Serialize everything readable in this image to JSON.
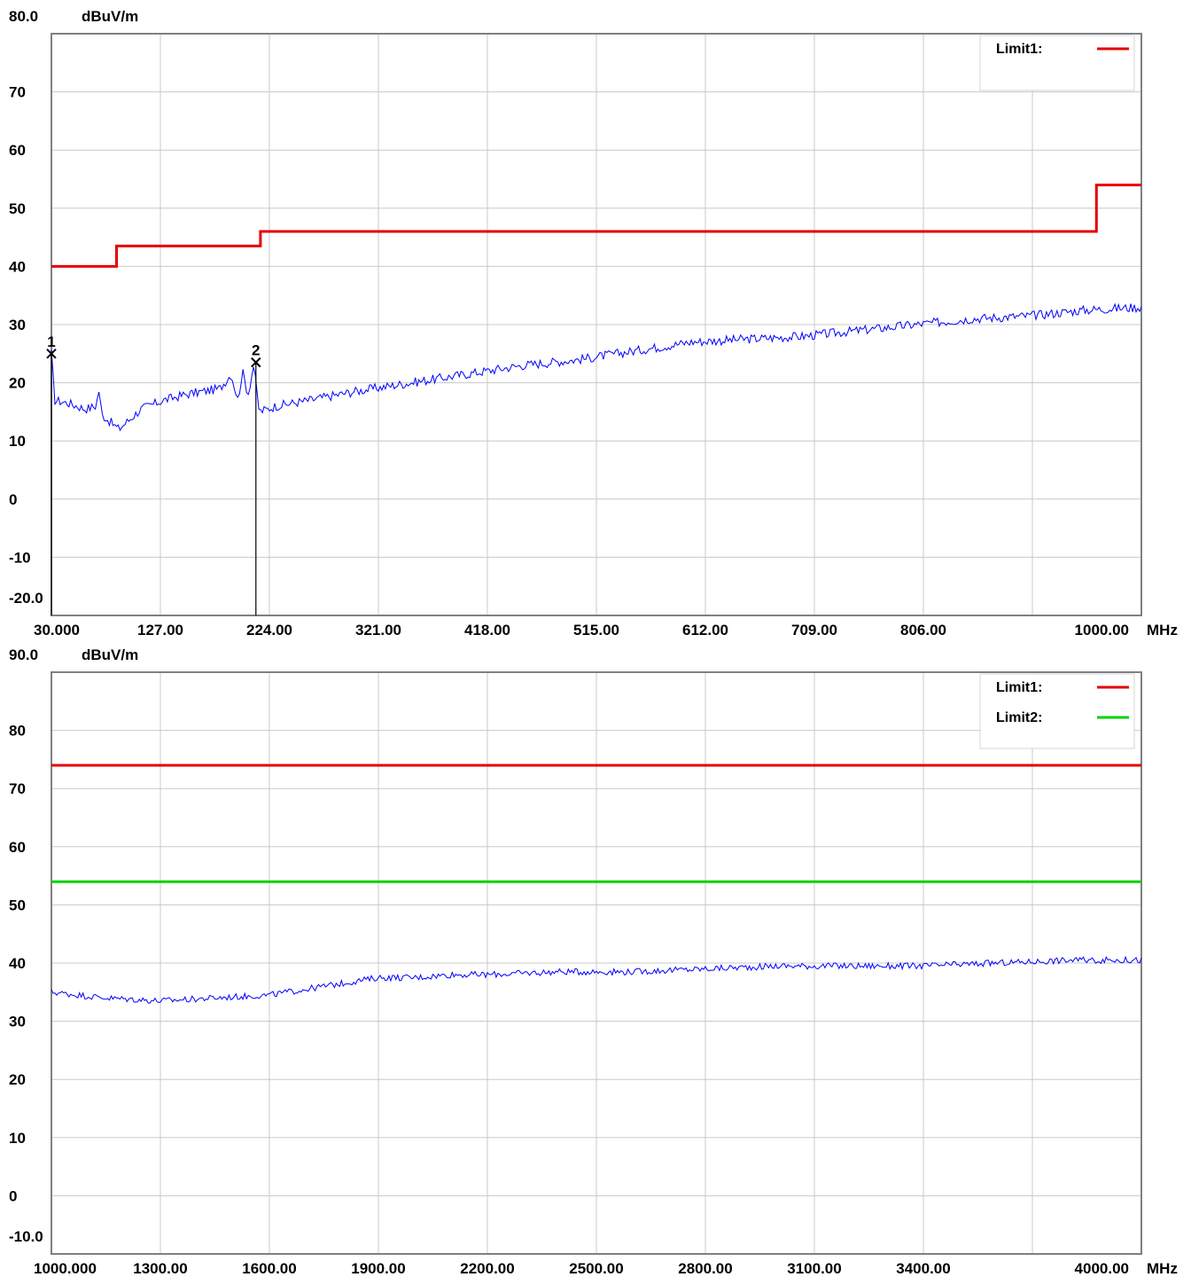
{
  "chart_data": [
    {
      "type": "line",
      "ylabel": "dBuV/m",
      "xunit": "MHz",
      "ylim": [
        -20,
        80
      ],
      "xlim": [
        30,
        1000
      ],
      "y_ticks": [
        "80.0",
        "70",
        "60",
        "50",
        "40",
        "30",
        "20",
        "10",
        "0",
        "-10",
        "-20.0"
      ],
      "y_tick_values": [
        80,
        70,
        60,
        50,
        40,
        30,
        20,
        10,
        0,
        -10,
        -20
      ],
      "x_ticks": [
        "30.000",
        "127.00",
        "224.00",
        "321.00",
        "418.00",
        "515.00",
        "612.00",
        "709.00",
        "806.00",
        "1000.00"
      ],
      "x_tick_values": [
        30,
        127,
        224,
        321,
        418,
        515,
        612,
        709,
        806,
        1000
      ],
      "grid": true,
      "legend_position": "top-right",
      "limits": [
        {
          "name": "Limit1:",
          "color": "#e60000",
          "points": [
            [
              30,
              40
            ],
            [
              88,
              40
            ],
            [
              88,
              43.5
            ],
            [
              216,
              43.5
            ],
            [
              216,
              46
            ],
            [
              960,
              46
            ],
            [
              960,
              54
            ],
            [
              1000,
              54
            ]
          ]
        }
      ],
      "series": [
        {
          "color": "#0000ff",
          "points": [
            [
              30,
              25
            ],
            [
              33,
              17
            ],
            [
              45,
              16.5
            ],
            [
              60,
              15.5
            ],
            [
              70,
              16
            ],
            [
              72,
              19
            ],
            [
              75,
              14.5
            ],
            [
              90,
              12
            ],
            [
              110,
              15.5
            ],
            [
              130,
              17
            ],
            [
              150,
              18
            ],
            [
              180,
              19
            ],
            [
              190,
              21.5
            ],
            [
              196,
              17
            ],
            [
              200,
              22
            ],
            [
              205,
              18
            ],
            [
              210,
              23
            ],
            [
              215,
              15
            ],
            [
              230,
              16
            ],
            [
              260,
              17
            ],
            [
              300,
              18.5
            ],
            [
              350,
              20
            ],
            [
              400,
              21.5
            ],
            [
              450,
              23
            ],
            [
              500,
              24
            ],
            [
              550,
              25.5
            ],
            [
              600,
              27
            ],
            [
              650,
              27.5
            ],
            [
              700,
              28
            ],
            [
              750,
              29
            ],
            [
              800,
              30
            ],
            [
              850,
              31
            ],
            [
              900,
              31.5
            ],
            [
              950,
              32.5
            ],
            [
              1000,
              33
            ]
          ]
        }
      ],
      "markers": [
        {
          "label": "1",
          "x": 30,
          "y": 25
        },
        {
          "label": "2",
          "x": 212,
          "y": 23.5
        }
      ]
    },
    {
      "type": "line",
      "ylabel": "dBuV/m",
      "xunit": "MHz",
      "ylim": [
        -10,
        90
      ],
      "xlim": [
        1000,
        4000
      ],
      "y_ticks": [
        "90.0",
        "80",
        "70",
        "60",
        "50",
        "40",
        "30",
        "20",
        "10",
        "0",
        "-10.0"
      ],
      "y_tick_values": [
        90,
        80,
        70,
        60,
        50,
        40,
        30,
        20,
        10,
        0,
        -10
      ],
      "x_ticks": [
        "1000.000",
        "1300.00",
        "1600.00",
        "1900.00",
        "2200.00",
        "2500.00",
        "2800.00",
        "3100.00",
        "3400.00",
        "4000.00"
      ],
      "x_tick_values": [
        1000,
        1300,
        1600,
        1900,
        2200,
        2500,
        2800,
        3100,
        3400,
        4000
      ],
      "grid": true,
      "legend_position": "top-right",
      "limits": [
        {
          "name": "Limit1:",
          "color": "#e60000",
          "points": [
            [
              1000,
              74
            ],
            [
              4000,
              74
            ]
          ]
        },
        {
          "name": "Limit2:",
          "color": "#00d200",
          "points": [
            [
              1000,
              54
            ],
            [
              4000,
              54
            ]
          ]
        }
      ],
      "series": [
        {
          "color": "#0000ff",
          "points": [
            [
              1000,
              35
            ],
            [
              1150,
              34
            ],
            [
              1300,
              33.5
            ],
            [
              1450,
              34
            ],
            [
              1600,
              34.5
            ],
            [
              1700,
              35.5
            ],
            [
              1800,
              36.5
            ],
            [
              1900,
              37.5
            ],
            [
              2000,
              37.5
            ],
            [
              2100,
              38
            ],
            [
              2200,
              38
            ],
            [
              2400,
              38.5
            ],
            [
              2600,
              38.5
            ],
            [
              2800,
              39
            ],
            [
              3000,
              39.5
            ],
            [
              3200,
              39.5
            ],
            [
              3400,
              39.5
            ],
            [
              3600,
              40
            ],
            [
              3800,
              40.5
            ],
            [
              4000,
              40.5
            ]
          ]
        }
      ],
      "markers": []
    }
  ]
}
